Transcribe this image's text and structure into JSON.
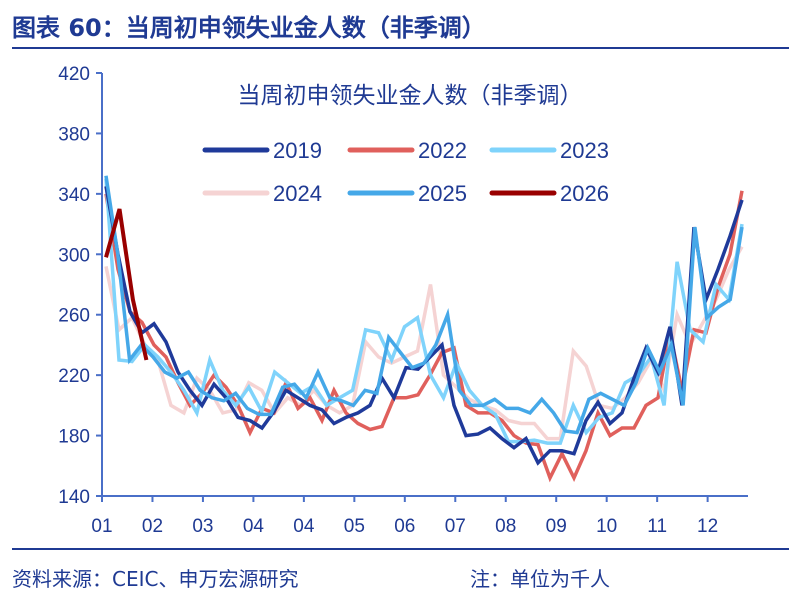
{
  "header": {
    "title": "图表 60：当周初申领失业金人数（非季调）"
  },
  "footer": {
    "source": "资料来源：CEIC、申万宏源研究",
    "note": "注：单位为千人"
  },
  "chart_data": {
    "type": "line",
    "title": "当周初申领失业金人数（非季调）",
    "xlabel": "",
    "ylabel": "",
    "ylim": [
      140,
      420
    ],
    "yticks": [
      140,
      180,
      220,
      260,
      300,
      340,
      380,
      420
    ],
    "xticks": [
      "01",
      "02",
      "03",
      "04",
      "04",
      "05",
      "06",
      "07",
      "08",
      "09",
      "10",
      "11",
      "12"
    ],
    "legend": "top",
    "series": [
      {
        "name": "2019",
        "color": "#1f3a9a",
        "values": [
          345,
          300,
          262,
          248,
          254,
          242,
          222,
          210,
          200,
          214,
          205,
          192,
          190,
          185,
          196,
          210,
          205,
          200,
          197,
          188,
          192,
          195,
          200,
          218,
          205,
          225,
          224,
          232,
          240,
          200,
          180,
          181,
          185,
          178,
          172,
          178,
          162,
          170,
          170,
          168,
          190,
          202,
          188,
          195,
          218,
          238,
          222,
          252,
          200,
          318,
          270,
          290,
          312,
          336
        ]
      },
      {
        "name": "2022",
        "color": "#e0605c",
        "values": [
          340,
          290,
          262,
          255,
          240,
          232,
          215,
          200,
          208,
          220,
          212,
          200,
          182,
          198,
          195,
          215,
          198,
          205,
          190,
          210,
          195,
          188,
          184,
          186,
          205,
          205,
          207,
          220,
          235,
          238,
          200,
          195,
          195,
          190,
          180,
          175,
          174,
          152,
          168,
          152,
          170,
          195,
          180,
          185,
          185,
          200,
          205,
          248,
          210,
          250,
          248,
          278,
          300,
          342
        ]
      },
      {
        "name": "2023",
        "color": "#7fd3fb",
        "values": [
          350,
          230,
          229,
          240,
          232,
          222,
          210,
          195,
          230,
          210,
          200,
          212,
          196,
          222,
          215,
          208,
          213,
          200,
          205,
          210,
          250,
          248,
          230,
          252,
          258,
          220,
          205,
          228,
          210,
          200,
          194,
          176,
          176,
          177,
          175,
          175,
          200,
          182,
          192,
          195,
          215,
          220,
          232,
          200,
          295,
          250,
          242,
          280,
          270,
          320
        ]
      },
      {
        "name": "2024",
        "color": "#f5d3d3",
        "values": [
          292,
          250,
          258,
          240,
          230,
          200,
          195,
          218,
          210,
          195,
          197,
          215,
          210,
          195,
          205,
          200,
          210,
          200,
          195,
          200,
          242,
          232,
          228,
          232,
          236,
          280,
          220,
          212,
          204,
          200,
          197,
          190,
          188,
          188,
          178,
          178,
          236,
          226,
          200,
          198,
          205,
          215,
          230,
          210,
          260,
          240,
          255,
          270,
          290,
          305
        ]
      },
      {
        "name": "2025",
        "color": "#45a8e8",
        "values": [
          352,
          300,
          230,
          240,
          232,
          222,
          218,
          222,
          210,
          205,
          203,
          208,
          198,
          194,
          194,
          212,
          214,
          205,
          222,
          205,
          203,
          200,
          210,
          208,
          245,
          235,
          225,
          228,
          240,
          260,
          210,
          200,
          200,
          204,
          198,
          198,
          195,
          204,
          195,
          183,
          182,
          204,
          208,
          204,
          200,
          215,
          238,
          222,
          240,
          200,
          318,
          258,
          265,
          270,
          318
        ]
      },
      {
        "name": "2026",
        "color": "#990000",
        "values": [
          298,
          330,
          270,
          230
        ]
      }
    ]
  }
}
